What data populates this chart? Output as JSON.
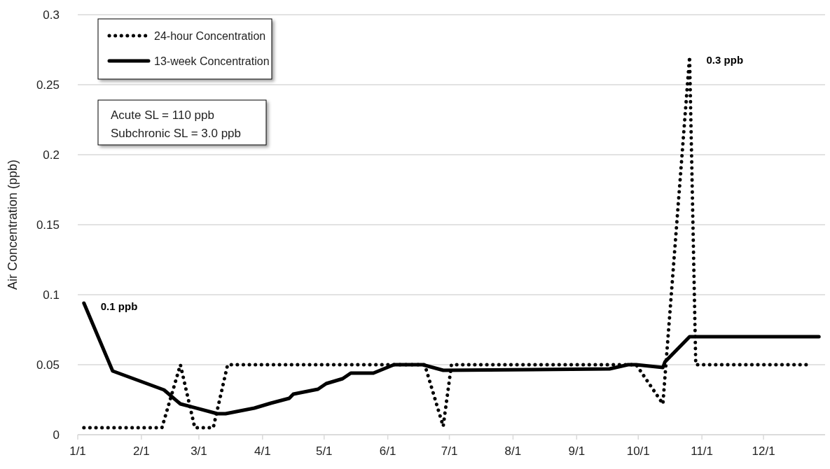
{
  "chart_data": {
    "type": "line",
    "ylabel": "Air Concentration (ppb)",
    "xlim": [
      "--01-01",
      "--12-31"
    ],
    "xticks": [
      {
        "value": "--01-01",
        "label": "1/1"
      },
      {
        "value": "--02-01",
        "label": "2/1"
      },
      {
        "value": "--03-01",
        "label": "3/1"
      },
      {
        "value": "--04-01",
        "label": "4/1"
      },
      {
        "value": "--05-01",
        "label": "5/1"
      },
      {
        "value": "--06-01",
        "label": "6/1"
      },
      {
        "value": "--07-01",
        "label": "7/1"
      },
      {
        "value": "--08-01",
        "label": "8/1"
      },
      {
        "value": "--09-01",
        "label": "9/1"
      },
      {
        "value": "--10-01",
        "label": "10/1"
      },
      {
        "value": "--11-01",
        "label": "11/1"
      },
      {
        "value": "--12-01",
        "label": "12/1"
      }
    ],
    "ylim": [
      0,
      0.3
    ],
    "yticks": [
      0,
      0.05,
      0.1,
      0.15,
      0.2,
      0.25,
      0.3
    ],
    "grid": "y",
    "legend": "top left",
    "marker": "none",
    "series": [
      {
        "name": "24-hour Concentration",
        "color": "#000000",
        "line_style": "dotted",
        "x": [
          "--01-04",
          "--02-11",
          "--02-20",
          "--02-27",
          "--03-08",
          "--03-15",
          "--06-19",
          "--06-28",
          "--07-02",
          "--09-30",
          "--10-13",
          "--10-26",
          "--10-29",
          "--12-24"
        ],
        "values": [
          0.005,
          0.005,
          0.05,
          0.005,
          0.005,
          0.05,
          0.05,
          0.006,
          0.05,
          0.05,
          0.022,
          0.27,
          0.05,
          0.05
        ]
      },
      {
        "name": "13-week Concentration",
        "color": "#000000",
        "line_style": "solid",
        "x": [
          "--01-04",
          "--01-18",
          "--02-12",
          "--02-20",
          "--02-26",
          "--03-10",
          "--03-14",
          "--03-28",
          "--04-05",
          "--04-14",
          "--04-16",
          "--04-28",
          "--05-02",
          "--05-10",
          "--05-14",
          "--05-25",
          "--06-04",
          "--06-18",
          "--06-28",
          "--09-17",
          "--09-26",
          "--09-30",
          "--10-13",
          "--10-14",
          "--10-26",
          "--12-28"
        ],
        "values": [
          0.094,
          0.0455,
          0.032,
          0.022,
          0.0197,
          0.015,
          0.015,
          0.019,
          0.0225,
          0.026,
          0.029,
          0.0325,
          0.0365,
          0.04,
          0.044,
          0.044,
          0.05,
          0.05,
          0.046,
          0.047,
          0.05,
          0.05,
          0.048,
          0.052,
          0.07,
          0.07
        ]
      }
    ],
    "annotations": [
      {
        "text": "0.1 ppb",
        "x": "--01-04",
        "y": 0.094
      },
      {
        "text": "0.3 ppb",
        "x": "--10-26",
        "y": 0.27
      },
      "Acute SL = 110 ppb",
      "Subchronic SL = 3.0 ppb"
    ]
  }
}
